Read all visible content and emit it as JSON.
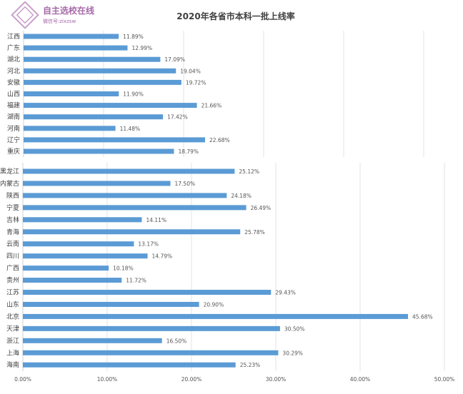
{
  "logo": {
    "line1": "自主选校在线",
    "line2": "微信号:zixzsw",
    "color": "#a66aa8"
  },
  "chart_data": [
    {
      "type": "bar",
      "orientation": "horizontal",
      "title": "2020年各省市本科一批上线率",
      "categories": [
        "江西",
        "广东",
        "湖北",
        "河北",
        "安徽",
        "山西",
        "福建",
        "湖南",
        "河南",
        "辽宁",
        "重庆"
      ],
      "values": [
        11.89,
        12.99,
        17.09,
        19.04,
        19.72,
        11.9,
        21.66,
        17.42,
        11.48,
        22.68,
        18.79
      ],
      "data_labels": [
        "11.89%",
        "12.99%",
        "17.09%",
        "19.04%",
        "19.72%",
        "11.90%",
        "21.66%",
        "17.42%",
        "11.48%",
        "22.68%",
        "18.79%"
      ],
      "xlim": [
        0,
        55
      ],
      "grid": true,
      "color": "#5b9bd5"
    },
    {
      "type": "bar",
      "orientation": "horizontal",
      "categories": [
        "黑龙江",
        "内蒙古",
        "陕西",
        "宁夏",
        "吉林",
        "青海",
        "云南",
        "四川",
        "广西",
        "贵州",
        "江苏",
        "山东",
        "北京",
        "天津",
        "浙江",
        "上海",
        "海南"
      ],
      "values": [
        25.12,
        17.5,
        24.18,
        26.49,
        14.11,
        25.78,
        13.17,
        14.79,
        10.18,
        11.72,
        29.43,
        20.9,
        45.68,
        30.5,
        16.5,
        30.29,
        25.23
      ],
      "data_labels": [
        "25.12%",
        "17.50%",
        "24.18%",
        "26.49%",
        "14.11%",
        "25.78%",
        "13.17%",
        "14.79%",
        "10.18%",
        "11.72%",
        "29.43%",
        "20.90%",
        "45.68%",
        "30.50%",
        "16.50%",
        "30.29%",
        "25.23%"
      ],
      "xlim": [
        0,
        50
      ],
      "x_ticks": [
        "0.00%",
        "10.00%",
        "20.00%",
        "30.00%",
        "40.00%",
        "50.00%"
      ],
      "grid": true,
      "color": "#5b9bd5"
    }
  ]
}
